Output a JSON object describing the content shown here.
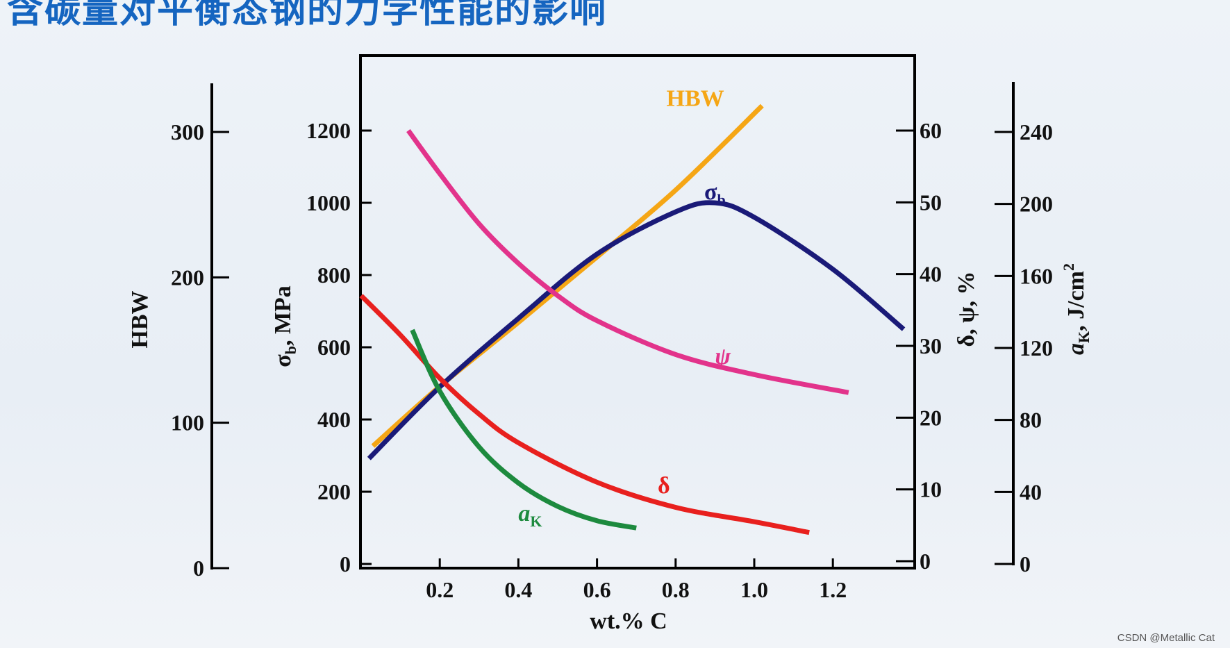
{
  "page": {
    "title": "含碳量对平衡态钢的力学性能的影响",
    "watermark": "CSDN @Metallic Cat"
  },
  "chart_data": {
    "type": "line",
    "x": {
      "label": "wt.% C",
      "range": [
        0,
        1.4
      ],
      "ticks": [
        0.2,
        0.4,
        0.6,
        0.8,
        1.0,
        1.2
      ],
      "tick_labels": [
        "0.2",
        "0.4",
        "0.6",
        "0.8",
        "1.0",
        "1.2"
      ]
    },
    "axes": {
      "hbw": {
        "label": "HBW",
        "range": [
          0,
          300
        ],
        "ticks": [
          0,
          100,
          200,
          300
        ],
        "tick_labels": [
          "0",
          "100",
          "200",
          "300"
        ]
      },
      "sigma": {
        "label_main": "σ",
        "label_sub": "b",
        "label_tail": ", MPa",
        "range": [
          0,
          1200
        ],
        "ticks": [
          0,
          200,
          400,
          600,
          800,
          1000,
          1200
        ],
        "tick_labels": [
          "0",
          "200",
          "400",
          "600",
          "800",
          "1000",
          "1200"
        ]
      },
      "pct": {
        "label": "δ, ψ, %",
        "range": [
          0,
          60
        ],
        "ticks": [
          0,
          10,
          20,
          30,
          40,
          50,
          60
        ],
        "tick_labels": [
          "0",
          "10",
          "20",
          "30",
          "40",
          "50",
          "60"
        ]
      },
      "ak": {
        "label_main": "a",
        "label_sub": "K",
        "label_tail": ", J/cm",
        "label_sup": "2",
        "range": [
          0,
          240
        ],
        "ticks": [
          0,
          40,
          80,
          120,
          160,
          200,
          240
        ],
        "tick_labels": [
          "0",
          "40",
          "80",
          "120",
          "160",
          "200",
          "240"
        ]
      }
    },
    "series": [
      {
        "name": "HBW",
        "axis": "hbw",
        "color": "#f5a615",
        "label_at": [
          0.85,
          318
        ],
        "points": [
          [
            0.03,
            84
          ],
          [
            0.2,
            125
          ],
          [
            0.4,
            169
          ],
          [
            0.6,
            214
          ],
          [
            0.8,
            260
          ],
          [
            1.02,
            318
          ]
        ]
      },
      {
        "name": "σ",
        "sub": "b",
        "axis": "sigma",
        "color": "#1a1a78",
        "label_at": [
          0.9,
          1010
        ],
        "points": [
          [
            0.02,
            292
          ],
          [
            0.2,
            490
          ],
          [
            0.4,
            680
          ],
          [
            0.6,
            858
          ],
          [
            0.8,
            975
          ],
          [
            0.9,
            1000
          ],
          [
            1.0,
            960
          ],
          [
            1.2,
            816
          ],
          [
            1.38,
            650
          ]
        ]
      },
      {
        "name": "ψ",
        "axis": "pct",
        "color": "#e2338b",
        "label_at": [
          0.92,
          27.5
        ],
        "points": [
          [
            0.12,
            60
          ],
          [
            0.2,
            54
          ],
          [
            0.3,
            47
          ],
          [
            0.4,
            41.5
          ],
          [
            0.5,
            37
          ],
          [
            0.6,
            33.5
          ],
          [
            0.8,
            28.8
          ],
          [
            1.0,
            26
          ],
          [
            1.24,
            23.5
          ]
        ]
      },
      {
        "name": "δ",
        "axis": "pct",
        "color": "#e8201e",
        "label_at": [
          0.77,
          9.5
        ],
        "points": [
          [
            0.0,
            37
          ],
          [
            0.1,
            31.5
          ],
          [
            0.2,
            25.5
          ],
          [
            0.3,
            20.5
          ],
          [
            0.4,
            16.5
          ],
          [
            0.6,
            11
          ],
          [
            0.8,
            7.5
          ],
          [
            1.0,
            5.5
          ],
          [
            1.14,
            4
          ]
        ]
      },
      {
        "name": "a",
        "sub": "K",
        "axis": "ak",
        "color": "#1d8a3e",
        "label_at": [
          0.43,
          24
        ],
        "points": [
          [
            0.13,
            130
          ],
          [
            0.2,
            96
          ],
          [
            0.3,
            65
          ],
          [
            0.4,
            45
          ],
          [
            0.5,
            32
          ],
          [
            0.6,
            24
          ],
          [
            0.7,
            20
          ]
        ]
      }
    ]
  }
}
